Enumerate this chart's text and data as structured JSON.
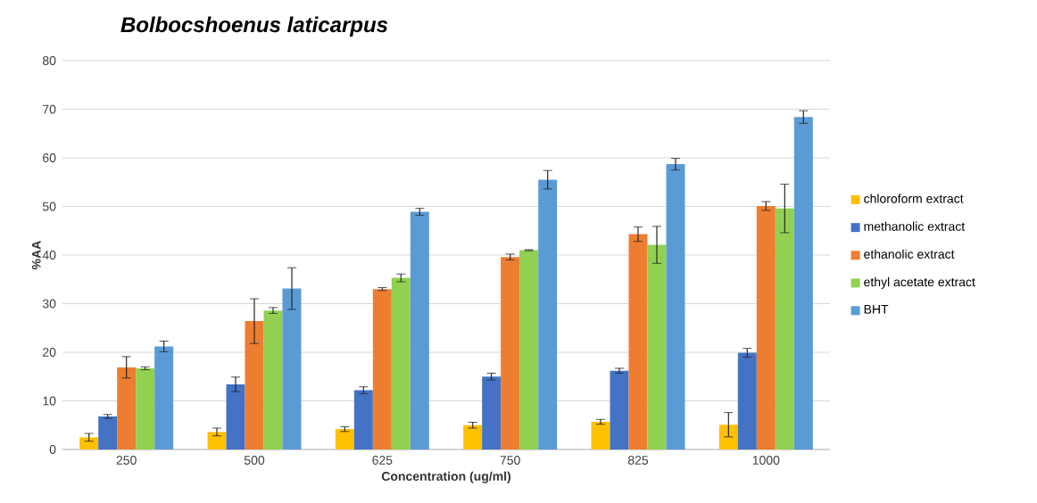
{
  "chart_data": {
    "type": "bar",
    "title": "Bolbocshoenus laticarpus",
    "xlabel": "Concentration (ug/ml)",
    "ylabel": "%AA",
    "categories": [
      "250",
      "500",
      "625",
      "750",
      "825",
      "1000"
    ],
    "series": [
      {
        "name": "chloroform extract",
        "color": "#ffc000",
        "values": [
          2.5,
          3.6,
          4.2,
          5.0,
          5.7,
          5.1
        ],
        "errors": [
          0.8,
          0.8,
          0.5,
          0.6,
          0.5,
          2.5
        ]
      },
      {
        "name": "methanolic extract",
        "color": "#4472c4",
        "values": [
          6.8,
          13.4,
          12.2,
          15.0,
          16.2,
          19.9
        ],
        "errors": [
          0.4,
          1.5,
          0.7,
          0.7,
          0.5,
          0.9
        ]
      },
      {
        "name": "ethanolic extract",
        "color": "#ed7d31",
        "values": [
          16.9,
          26.4,
          33.0,
          39.6,
          44.3,
          50.1
        ],
        "errors": [
          2.2,
          4.6,
          0.3,
          0.6,
          1.5,
          0.9
        ]
      },
      {
        "name": "ethyl acetate extract",
        "color": "#92d050",
        "values": [
          16.7,
          28.6,
          35.3,
          41.0,
          42.1,
          49.6
        ],
        "errors": [
          0.3,
          0.6,
          0.8,
          0.1,
          3.8,
          5.0
        ]
      },
      {
        "name": "BHT",
        "color": "#5b9bd5",
        "values": [
          21.2,
          33.1,
          48.9,
          55.5,
          58.7,
          68.4
        ],
        "errors": [
          1.1,
          4.3,
          0.7,
          1.9,
          1.2,
          1.3
        ]
      }
    ],
    "ylim": [
      0,
      80
    ],
    "yticks": [
      0,
      10,
      20,
      30,
      40,
      50,
      60,
      70,
      80
    ],
    "grid": "y",
    "legend": "right"
  }
}
